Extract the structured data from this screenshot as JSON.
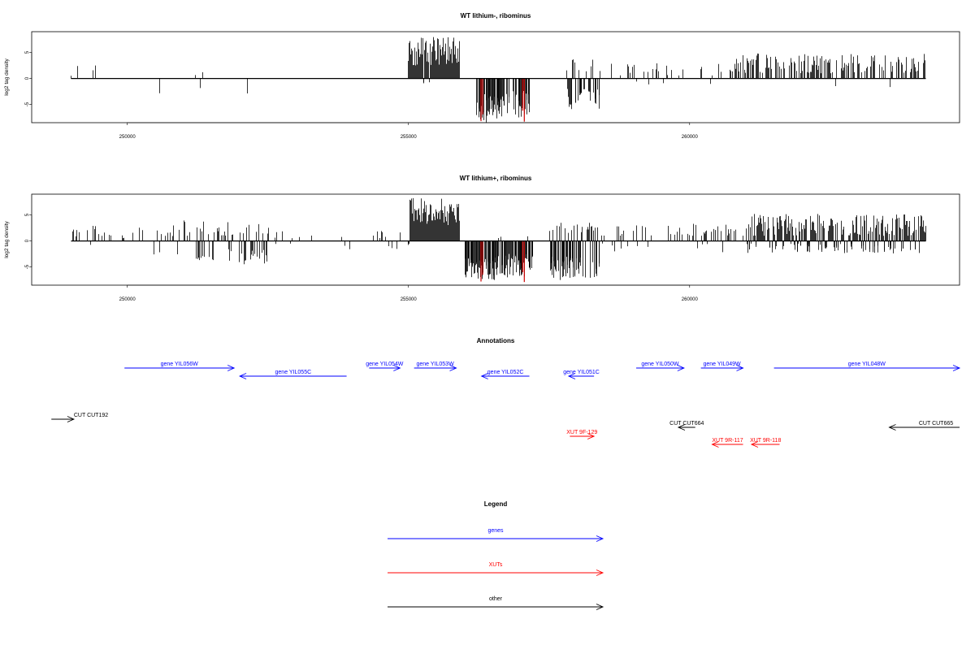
{
  "chart_data": [
    {
      "type": "bar",
      "title": "WT lithium-, ribominus",
      "ylabel": "log2 tag density",
      "xlabel": "",
      "xlim": [
        248300,
        264800
      ],
      "ylim": [
        -8.5,
        9
      ],
      "yticks": [
        -5,
        0,
        5
      ],
      "xticks": [
        250000,
        255000,
        260000
      ],
      "grid": false,
      "colors": {
        "bars": "#000000",
        "highlight": "#cc0000"
      },
      "segments": [
        {
          "x": [
            249000,
            252500
          ],
          "density": 0.05,
          "pos": [
            0.5,
            3.2
          ],
          "neg": [
            -1.5,
            -3.7
          ],
          "negProb": 0.25
        },
        {
          "x": [
            253500,
            254450
          ],
          "density": 0.04,
          "pos": [
            0.5,
            1.5
          ],
          "neg": [
            -1.0,
            -3.5
          ],
          "negProb": 0.5
        },
        {
          "x": [
            254990,
            255900
          ],
          "density": 1.0,
          "pos": [
            2.5,
            8.0
          ],
          "neg": [
            -0.3,
            -1.0
          ],
          "negProb": 0.02
        },
        {
          "x": [
            256200,
            256700
          ],
          "density": 0.9,
          "pos": [
            0.2,
            0.6
          ],
          "neg": [
            -3.0,
            -8.5
          ],
          "negProb": 0.98
        },
        {
          "x": [
            256700,
            257150
          ],
          "density": 0.7,
          "pos": [
            0.2,
            0.6
          ],
          "neg": [
            -2.0,
            -7.5
          ],
          "negProb": 0.98
        },
        {
          "x": [
            257800,
            258400
          ],
          "density": 0.75,
          "pos": [
            1.0,
            3.7
          ],
          "neg": [
            -2.0,
            -6.0
          ],
          "negProb": 0.65
        },
        {
          "x": [
            258400,
            260800
          ],
          "density": 0.12,
          "pos": [
            0.5,
            3.0
          ],
          "neg": [
            -0.5,
            -1.5
          ],
          "negProb": 0.08
        },
        {
          "x": [
            260800,
            264200
          ],
          "density": 0.55,
          "pos": [
            1.0,
            4.8
          ],
          "neg": [
            -0.5,
            -2.5
          ],
          "negProb": 0.03
        }
      ],
      "highlights": [
        {
          "x": 256290,
          "y": -8.2
        },
        {
          "x": 256320,
          "y": -6.9
        },
        {
          "x": 257060,
          "y": -8.3
        },
        {
          "x": 257030,
          "y": -6.2
        }
      ]
    },
    {
      "type": "bar",
      "title": "WT lithium+, ribominus",
      "ylabel": "log2 tag density",
      "xlabel": "",
      "xlim": [
        248300,
        264800
      ],
      "ylim": [
        -8.5,
        9
      ],
      "yticks": [
        -5,
        0,
        5
      ],
      "xticks": [
        250000,
        255000,
        260000
      ],
      "grid": false,
      "colors": {
        "bars": "#000000",
        "highlight": "#cc0000"
      },
      "segments": [
        {
          "x": [
            249000,
            251000
          ],
          "density": 0.3,
          "pos": [
            0.5,
            3.0
          ],
          "neg": [
            -0.5,
            -3.0
          ],
          "negProb": 0.2
        },
        {
          "x": [
            251000,
            252500
          ],
          "density": 0.6,
          "pos": [
            1.0,
            4.0
          ],
          "neg": [
            -1.5,
            -4.5
          ],
          "negProb": 0.55
        },
        {
          "x": [
            252500,
            254900
          ],
          "density": 0.12,
          "pos": [
            0.5,
            2.0
          ],
          "neg": [
            -0.5,
            -1.8
          ],
          "negProb": 0.55
        },
        {
          "x": [
            254990,
            255900
          ],
          "density": 1.0,
          "pos": [
            3.0,
            8.3
          ],
          "neg": [
            -0.3,
            -1.0
          ],
          "negProb": 0.05
        },
        {
          "x": [
            256000,
            256600
          ],
          "density": 0.9,
          "pos": [
            0.3,
            1.0
          ],
          "neg": [
            -3.0,
            -7.5
          ],
          "negProb": 0.95
        },
        {
          "x": [
            256600,
            257200
          ],
          "density": 0.85,
          "pos": [
            0.3,
            1.0
          ],
          "neg": [
            -2.5,
            -7.0
          ],
          "negProb": 0.95
        },
        {
          "x": [
            257500,
            258400
          ],
          "density": 0.85,
          "pos": [
            1.5,
            3.5
          ],
          "neg": [
            -3.0,
            -7.7
          ],
          "negProb": 0.7
        },
        {
          "x": [
            258400,
            260200
          ],
          "density": 0.25,
          "pos": [
            1.0,
            3.5
          ],
          "neg": [
            -0.5,
            -2.0
          ],
          "negProb": 0.3
        },
        {
          "x": [
            260200,
            261000
          ],
          "density": 0.45,
          "pos": [
            1.0,
            4.0
          ],
          "neg": [
            -0.5,
            -2.5
          ],
          "negProb": 0.35
        },
        {
          "x": [
            261000,
            264200
          ],
          "density": 0.9,
          "pos": [
            1.0,
            5.2
          ],
          "neg": [
            -0.5,
            -2.5
          ],
          "negProb": 0.3
        }
      ],
      "highlights": [
        {
          "x": 256290,
          "y": -7.8
        },
        {
          "x": 256320,
          "y": -6.5
        },
        {
          "x": 257060,
          "y": -7.9
        },
        {
          "x": 257030,
          "y": -6.0
        }
      ]
    }
  ],
  "annotations": {
    "title": "Annotations",
    "xlim": [
      248300,
      264800
    ],
    "features": [
      {
        "label": "gene YIL056W",
        "start": 249950,
        "end": 251900,
        "row": 0,
        "color": "#0000ff"
      },
      {
        "label": "gene YIL055C",
        "start": 252000,
        "end": 253900,
        "row": 1,
        "color": "#0000ff"
      },
      {
        "label": "gene YIL054W",
        "start": 254300,
        "end": 254850,
        "row": 0,
        "color": "#0000ff"
      },
      {
        "label": "gene YIL053W",
        "start": 255100,
        "end": 255850,
        "row": 0,
        "color": "#0000ff"
      },
      {
        "label": "gene YIL052C",
        "start": 256300,
        "end": 257150,
        "row": 1,
        "color": "#0000ff"
      },
      {
        "label": "gene YIL051C",
        "start": 257850,
        "end": 258300,
        "row": 1,
        "color": "#0000ff"
      },
      {
        "label": "gene YIL050W",
        "start": 259050,
        "end": 259900,
        "row": 0,
        "color": "#0000ff"
      },
      {
        "label": "gene YIL049W",
        "start": 260200,
        "end": 260950,
        "row": 0,
        "color": "#0000ff"
      },
      {
        "label": "gene YIL048W",
        "start": 261500,
        "end": 264800,
        "row": 0,
        "color": "#0000ff"
      },
      {
        "label": "CUT CUT192",
        "start": 248650,
        "end": 249050,
        "row": 3,
        "color": "#000000"
      },
      {
        "label": "XUT 9F-129",
        "start": 257870,
        "end": 258300,
        "row": 5,
        "color": "#ff0000"
      },
      {
        "label": "CUT CUT664",
        "start": 259800,
        "end": 260100,
        "row": 4,
        "color": "#000000"
      },
      {
        "label": "XUT 9R-117",
        "start": 260400,
        "end": 260950,
        "row": 6,
        "color": "#ff0000"
      },
      {
        "label": "XUT 9R-118",
        "start": 261100,
        "end": 261600,
        "row": 6,
        "color": "#ff0000"
      },
      {
        "label": "CUT CUT665",
        "start": 263550,
        "end": 264800,
        "row": 4,
        "color": "#000000"
      }
    ]
  },
  "legend": {
    "title": "Legend",
    "items": [
      {
        "label": "genes",
        "color": "#0000ff"
      },
      {
        "label": "XUTs",
        "color": "#ff0000"
      },
      {
        "label": "other",
        "color": "#000000"
      }
    ]
  }
}
